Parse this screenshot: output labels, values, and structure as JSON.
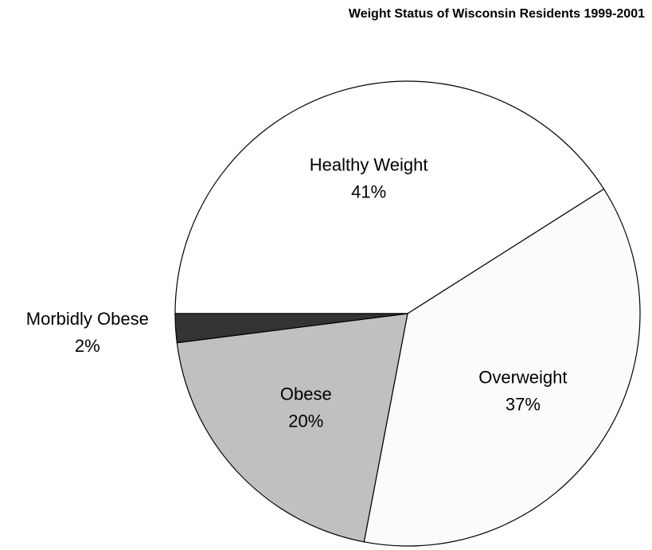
{
  "chart_data": {
    "type": "pie",
    "title": "Weight Status of Wisconsin Residents 1999-2001",
    "categories": [
      "Healthy Weight",
      "Overweight",
      "Obese",
      "Morbidly Obese"
    ],
    "values": [
      41,
      37,
      20,
      2
    ],
    "value_labels": [
      "41%",
      "37%",
      "20%",
      "2%"
    ],
    "colors": [
      "#ffffff",
      "#fbfbfb",
      "#c0c0c0",
      "#333333"
    ]
  }
}
